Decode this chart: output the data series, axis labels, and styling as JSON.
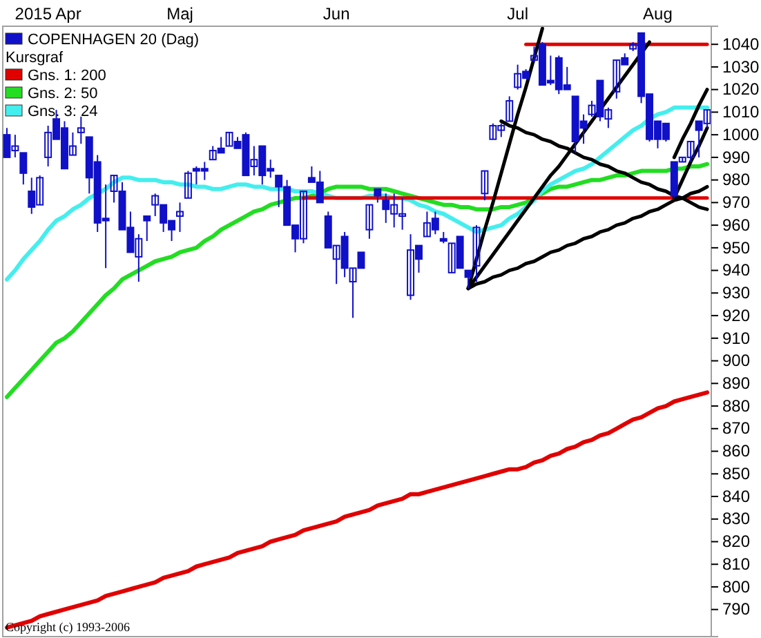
{
  "chart_data": {
    "type": "candlestick",
    "legend_title": "Kursgraf",
    "legend": "top left",
    "annotations": [
      "Copyright (c) 1993-2006"
    ],
    "ylim": [
      778,
      1048
    ],
    "categories": [
      null,
      null,
      null,
      null,
      null,
      "2015 Apr",
      null,
      null,
      null,
      null,
      null,
      null,
      null,
      null,
      null,
      null,
      null,
      null,
      null,
      null,
      null,
      "Maj",
      null,
      null,
      null,
      null,
      null,
      null,
      null,
      null,
      null,
      null,
      null,
      null,
      null,
      null,
      null,
      null,
      null,
      null,
      "Jun",
      null,
      null,
      null,
      null,
      null,
      null,
      null,
      null,
      null,
      null,
      null,
      null,
      null,
      null,
      null,
      null,
      null,
      null,
      null,
      null,
      null,
      "Jul",
      null,
      null,
      null,
      null,
      null,
      null,
      null,
      null,
      null,
      null,
      null,
      null,
      null,
      null,
      null,
      null,
      "Aug",
      null,
      null,
      null,
      null,
      null,
      null
    ],
    "yticks": [
      790,
      800,
      810,
      820,
      830,
      840,
      850,
      860,
      870,
      880,
      890,
      900,
      910,
      920,
      930,
      940,
      950,
      960,
      970,
      980,
      990,
      1000,
      1010,
      1020,
      1030,
      1040
    ],
    "series": [
      {
        "type": "line",
        "name": "Gns. 1: 200",
        "color": "#e00000",
        "values": [
          782,
          783,
          784,
          785,
          787,
          788,
          789,
          790,
          791,
          792,
          793,
          794,
          796,
          797,
          798,
          799,
          800,
          801,
          802,
          804,
          805,
          806,
          807,
          809,
          810,
          811,
          812,
          813,
          815,
          816,
          817,
          818,
          820,
          821,
          822,
          823,
          825,
          826,
          827,
          828,
          829,
          831,
          832,
          833,
          834,
          836,
          837,
          838,
          839,
          841,
          841,
          842,
          843,
          844,
          845,
          846,
          847,
          848,
          849,
          850,
          851,
          852,
          852,
          853,
          855,
          856,
          858,
          859,
          861,
          862,
          864,
          865,
          867,
          868,
          870,
          872,
          874,
          875,
          877,
          879,
          880,
          882,
          883,
          884,
          885,
          886
        ]
      },
      {
        "type": "line",
        "name": "Gns. 2: 50",
        "color": "#22dd22",
        "values": [
          884,
          888,
          892,
          896,
          900,
          904,
          908,
          910,
          913,
          917,
          921,
          925,
          929,
          932,
          936,
          938,
          940,
          942,
          944,
          945,
          946,
          948,
          949,
          950,
          953,
          955,
          958,
          960,
          962,
          964,
          966,
          967,
          969,
          970,
          971,
          972,
          972,
          973,
          974,
          976,
          977,
          977,
          977,
          977,
          976,
          976,
          976,
          975,
          974,
          973,
          972,
          971,
          970,
          969,
          969,
          968,
          968,
          967,
          967,
          967,
          968,
          968,
          969,
          970,
          972,
          974,
          976,
          977,
          977,
          978,
          979,
          980,
          980,
          981,
          982,
          982,
          983,
          984,
          984,
          984,
          984,
          985,
          985,
          986,
          986,
          987
        ]
      },
      {
        "type": "line",
        "name": "Gns. 3: 24",
        "color": "#44eeee",
        "values": [
          936,
          940,
          945,
          949,
          953,
          958,
          962,
          964,
          967,
          969,
          972,
          974,
          976,
          979,
          981,
          981,
          980,
          980,
          980,
          979,
          979,
          978,
          978,
          977,
          977,
          976,
          976,
          977,
          978,
          978,
          977,
          977,
          976,
          976,
          976,
          975,
          975,
          975,
          974,
          973,
          972,
          972,
          972,
          972,
          973,
          973,
          973,
          972,
          972,
          971,
          969,
          968,
          966,
          965,
          963,
          961,
          959,
          957,
          958,
          959,
          960,
          963,
          965,
          968,
          971,
          975,
          978,
          980,
          982,
          984,
          985,
          987,
          990,
          993,
          996,
          999,
          1002,
          1004,
          1007,
          1009,
          1010,
          1012,
          1012,
          1012,
          1012,
          1012
        ]
      },
      {
        "type": "line",
        "color": "#e00000",
        "values": [
          null,
          null,
          null,
          null,
          null,
          null,
          null,
          null,
          null,
          null,
          null,
          null,
          null,
          null,
          null,
          null,
          null,
          null,
          null,
          null,
          null,
          null,
          null,
          null,
          null,
          null,
          null,
          null,
          null,
          null,
          null,
          null,
          null,
          null,
          null,
          null,
          972,
          972,
          972,
          972,
          972,
          972,
          972,
          972,
          972,
          972,
          972,
          972,
          972,
          972,
          972,
          972,
          972,
          972,
          972,
          972,
          972,
          972,
          972,
          972,
          972,
          972,
          972,
          972,
          972,
          972,
          972,
          972,
          972,
          972,
          972,
          972,
          972,
          972,
          972,
          972,
          972,
          972,
          972,
          972,
          972,
          972,
          972,
          972,
          972,
          972
        ]
      },
      {
        "type": "line",
        "color": "#e00000",
        "values": [
          null,
          null,
          null,
          null,
          null,
          null,
          null,
          null,
          null,
          null,
          null,
          null,
          null,
          null,
          null,
          null,
          null,
          null,
          null,
          null,
          null,
          null,
          null,
          null,
          null,
          null,
          null,
          null,
          null,
          null,
          null,
          null,
          null,
          null,
          null,
          null,
          null,
          null,
          null,
          null,
          null,
          null,
          null,
          null,
          null,
          null,
          null,
          null,
          null,
          null,
          null,
          null,
          null,
          null,
          null,
          null,
          null,
          null,
          null,
          null,
          null,
          null,
          null,
          1040,
          1040,
          1040,
          1040,
          1040,
          1040,
          1040,
          1040,
          1040,
          1040,
          1040,
          1040,
          1040,
          1040,
          1040,
          1040,
          1040,
          1040,
          1040,
          1040,
          1040,
          1040,
          1040
        ]
      },
      {
        "type": "line",
        "color": "#000000",
        "values": [
          null,
          null,
          null,
          null,
          null,
          null,
          null,
          null,
          null,
          null,
          null,
          null,
          null,
          null,
          null,
          null,
          null,
          null,
          null,
          null,
          null,
          null,
          null,
          null,
          null,
          null,
          null,
          null,
          null,
          null,
          null,
          null,
          null,
          null,
          null,
          null,
          null,
          null,
          null,
          null,
          null,
          null,
          null,
          null,
          null,
          null,
          null,
          null,
          null,
          null,
          null,
          null,
          null,
          null,
          null,
          null,
          932,
          945,
          958,
          970,
          983,
          996,
          1009,
          1021,
          1034,
          1047,
          null,
          null,
          null,
          null,
          null,
          null,
          null,
          null,
          null,
          null,
          null,
          null,
          null,
          null,
          null,
          null,
          null,
          null,
          null,
          null
        ]
      },
      {
        "type": "line",
        "color": "#000000",
        "values": [
          null,
          null,
          null,
          null,
          null,
          null,
          null,
          null,
          null,
          null,
          null,
          null,
          null,
          null,
          null,
          null,
          null,
          null,
          null,
          null,
          null,
          null,
          null,
          null,
          null,
          null,
          null,
          null,
          null,
          null,
          null,
          null,
          null,
          null,
          null,
          null,
          null,
          null,
          null,
          null,
          null,
          null,
          null,
          null,
          null,
          null,
          null,
          null,
          null,
          null,
          null,
          null,
          null,
          null,
          null,
          null,
          932,
          937,
          942,
          947,
          952,
          957,
          962,
          967,
          972,
          977,
          982,
          986,
          991,
          996,
          1001,
          1006,
          1011,
          1016,
          1021,
          1026,
          1031,
          1036,
          1041,
          null,
          null,
          null,
          null,
          null,
          null,
          null
        ]
      },
      {
        "type": "line",
        "color": "#000000",
        "values": [
          null,
          null,
          null,
          null,
          null,
          null,
          null,
          null,
          null,
          null,
          null,
          null,
          null,
          null,
          null,
          null,
          null,
          null,
          null,
          null,
          null,
          null,
          null,
          null,
          null,
          null,
          null,
          null,
          null,
          null,
          null,
          null,
          null,
          null,
          null,
          null,
          null,
          null,
          null,
          null,
          null,
          null,
          null,
          null,
          null,
          null,
          null,
          null,
          null,
          null,
          null,
          null,
          null,
          null,
          null,
          null,
          932,
          934,
          935,
          937,
          938,
          940,
          941,
          943,
          944,
          946,
          948,
          949,
          951,
          952,
          954,
          955,
          957,
          958,
          960,
          961,
          963,
          964,
          966,
          967,
          969,
          971,
          972,
          974,
          975,
          977
        ]
      },
      {
        "type": "line",
        "color": "#000000",
        "values": [
          null,
          null,
          null,
          null,
          null,
          null,
          null,
          null,
          null,
          null,
          null,
          null,
          null,
          null,
          null,
          null,
          null,
          null,
          null,
          null,
          null,
          null,
          null,
          null,
          null,
          null,
          null,
          null,
          null,
          null,
          null,
          null,
          null,
          null,
          null,
          null,
          null,
          null,
          null,
          null,
          null,
          null,
          null,
          null,
          null,
          null,
          null,
          null,
          null,
          null,
          null,
          null,
          null,
          null,
          null,
          null,
          null,
          null,
          null,
          null,
          1006,
          1004,
          1003,
          1001,
          1000,
          998,
          997,
          995,
          994,
          992,
          990,
          989,
          987,
          986,
          984,
          983,
          981,
          979,
          978,
          976,
          975,
          973,
          972,
          970,
          968,
          967
        ]
      },
      {
        "type": "line",
        "color": "#000000",
        "values": [
          null,
          null,
          null,
          null,
          null,
          null,
          null,
          null,
          null,
          null,
          null,
          null,
          null,
          null,
          null,
          null,
          null,
          null,
          null,
          null,
          null,
          null,
          null,
          null,
          null,
          null,
          null,
          null,
          null,
          null,
          null,
          null,
          null,
          null,
          null,
          null,
          null,
          null,
          null,
          null,
          null,
          null,
          null,
          null,
          null,
          null,
          null,
          null,
          null,
          null,
          null,
          null,
          null,
          null,
          null,
          null,
          null,
          null,
          null,
          null,
          null,
          null,
          null,
          null,
          null,
          null,
          null,
          null,
          null,
          null,
          null,
          null,
          null,
          null,
          null,
          null,
          null,
          null,
          null,
          null,
          null,
          972,
          980,
          988,
          995,
          1003
        ]
      },
      {
        "type": "line",
        "color": "#000000",
        "values": [
          null,
          null,
          null,
          null,
          null,
          null,
          null,
          null,
          null,
          null,
          null,
          null,
          null,
          null,
          null,
          null,
          null,
          null,
          null,
          null,
          null,
          null,
          null,
          null,
          null,
          null,
          null,
          null,
          null,
          null,
          null,
          null,
          null,
          null,
          null,
          null,
          null,
          null,
          null,
          null,
          null,
          null,
          null,
          null,
          null,
          null,
          null,
          null,
          null,
          null,
          null,
          null,
          null,
          null,
          null,
          null,
          null,
          null,
          null,
          null,
          null,
          null,
          null,
          null,
          null,
          null,
          null,
          null,
          null,
          null,
          null,
          null,
          null,
          null,
          null,
          null,
          null,
          null,
          null,
          null,
          null,
          990,
          998,
          1005,
          1013,
          1020
        ]
      },
      {
        "name": "COPENHAGEN 20 (Dag)",
        "color": "#1010c8",
        "ohlc": [
          [
            1000,
            1003,
            990,
            990
          ],
          [
            993,
            1000,
            990,
            995
          ],
          [
            992,
            992,
            978,
            983
          ],
          [
            975,
            981,
            965,
            968
          ],
          [
            969,
            982,
            969,
            981
          ],
          [
            990,
            1004,
            986,
            1001
          ],
          [
            1007,
            1011,
            998,
            998
          ],
          [
            1003,
            1006,
            985,
            985
          ],
          [
            991,
            1001,
            991,
            995
          ],
          [
            1001,
            1008,
            996,
            1003
          ],
          [
            999,
            999,
            974,
            981
          ],
          [
            988,
            991,
            957,
            961
          ],
          [
            963,
            978,
            941,
            962
          ],
          [
            975,
            982,
            970,
            982
          ],
          [
            975,
            979,
            958,
            958
          ],
          [
            959,
            966,
            948,
            948
          ],
          [
            946,
            956,
            935,
            954
          ],
          [
            964,
            964,
            953,
            962
          ],
          [
            969,
            974,
            964,
            973
          ],
          [
            969,
            969,
            957,
            961
          ],
          [
            962,
            962,
            953,
            958
          ],
          [
            964,
            970,
            957,
            966
          ],
          [
            972,
            984,
            972,
            983
          ],
          [
            985,
            986,
            978,
            984
          ],
          [
            985,
            988,
            980,
            984
          ],
          [
            989,
            995,
            989,
            993
          ],
          [
            994,
            999,
            992,
            992
          ],
          [
            995,
            1001,
            995,
            1001
          ],
          [
            997,
            999,
            994,
            994
          ],
          [
            1000,
            1001,
            982,
            982
          ],
          [
            986,
            995,
            982,
            989
          ],
          [
            995,
            995,
            978,
            982
          ],
          [
            985,
            989,
            981,
            984
          ],
          [
            982,
            982,
            968,
            977
          ],
          [
            977,
            980,
            960,
            960
          ],
          [
            960,
            960,
            948,
            954
          ],
          [
            954,
            975,
            952,
            975
          ],
          [
            981,
            986,
            979,
            979
          ],
          [
            979,
            984,
            970,
            970
          ],
          [
            964,
            966,
            950,
            950
          ],
          [
            945,
            951,
            934,
            951
          ],
          [
            955,
            957,
            937,
            941
          ],
          [
            935,
            941,
            919,
            941
          ],
          [
            948,
            948,
            941,
            941
          ],
          [
            958,
            969,
            954,
            969
          ],
          [
            976,
            976,
            970,
            973
          ],
          [
            971,
            974,
            961,
            967
          ],
          [
            965,
            974,
            959,
            969
          ],
          [
            964,
            972,
            958,
            965
          ],
          [
            929,
            956,
            927,
            949
          ],
          [
            951,
            951,
            939,
            945
          ],
          [
            955,
            966,
            955,
            961
          ],
          [
            963,
            966,
            956,
            958
          ],
          [
            954,
            957,
            952,
            953
          ],
          [
            939,
            952,
            939,
            952
          ],
          [
            955,
            955,
            941,
            941
          ],
          [
            940,
            940,
            932,
            937
          ],
          [
            942,
            960,
            935,
            959
          ],
          [
            974,
            984,
            971,
            984
          ],
          [
            998,
            1005,
            998,
            1004
          ],
          [
            1002,
            1005,
            999,
            1004
          ],
          [
            1006,
            1017,
            1006,
            1015
          ],
          [
            1021,
            1031,
            1020,
            1027
          ],
          [
            1028,
            1029,
            1025,
            1025
          ],
          [
            1033,
            1039,
            1032,
            1035
          ],
          [
            1040,
            1041,
            1022,
            1022
          ],
          [
            1024,
            1035,
            1022,
            1023
          ],
          [
            1034,
            1035,
            1018,
            1020
          ],
          [
            1022,
            1030,
            1020,
            1020
          ],
          [
            1017,
            1017,
            992,
            997
          ],
          [
            1006,
            1009,
            996,
            1003
          ],
          [
            1009,
            1015,
            1008,
            1013
          ],
          [
            1024,
            1024,
            1006,
            1008
          ],
          [
            1007,
            1012,
            1003,
            1011
          ],
          [
            1019,
            1033,
            1016,
            1033
          ],
          [
            1034,
            1036,
            1031,
            1031
          ],
          [
            1038,
            1041,
            1037,
            1040
          ],
          [
            1045,
            1045,
            1014,
            1017
          ],
          [
            1018,
            1018,
            997,
            998
          ],
          [
            1006,
            1006,
            994,
            998
          ],
          [
            1005,
            1005,
            997,
            998
          ],
          [
            988,
            988,
            972,
            973
          ],
          [
            988,
            990,
            988,
            990
          ],
          [
            990,
            997,
            988,
            997
          ],
          [
            1006,
            1006,
            990,
            1002
          ],
          [
            1005,
            1011,
            1003,
            1011
          ]
        ]
      }
    ]
  }
}
